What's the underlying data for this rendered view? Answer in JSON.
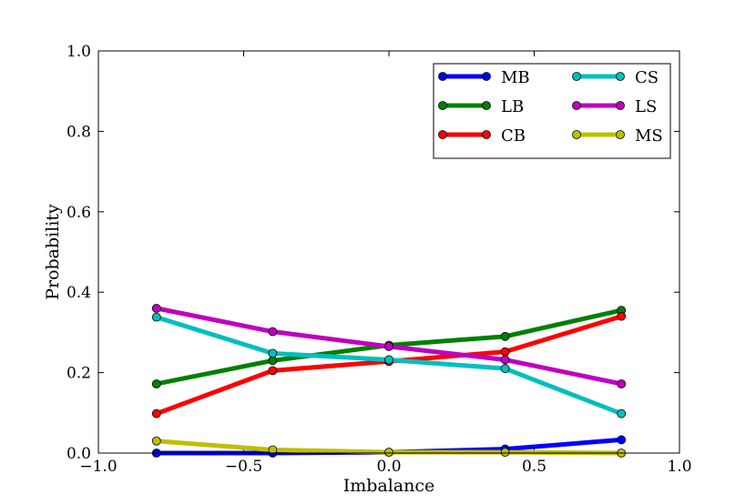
{
  "chart_data": {
    "type": "line",
    "title": "",
    "xlabel": "Imbalance",
    "ylabel": "Probability",
    "xlim": [
      -1.0,
      1.0
    ],
    "ylim": [
      0.0,
      1.0
    ],
    "xticks": [
      -1.0,
      -0.5,
      0.0,
      0.5,
      1.0
    ],
    "xtick_labels": [
      "−1.0",
      "−0.5",
      "0.0",
      "0.5",
      "1.0"
    ],
    "yticks": [
      0.0,
      0.2,
      0.4,
      0.6,
      0.8,
      1.0
    ],
    "ytick_labels": [
      "0.0",
      "0.2",
      "0.4",
      "0.6",
      "0.8",
      "1.0"
    ],
    "grid": false,
    "legend_position": "top-right",
    "x": [
      -0.8,
      -0.4,
      0.0,
      0.4,
      0.8
    ],
    "series": [
      {
        "name": "MB",
        "color": "#0000ff",
        "values": [
          0.0,
          0.0,
          0.002,
          0.01,
          0.033
        ]
      },
      {
        "name": "LB",
        "color": "#008000",
        "values": [
          0.172,
          0.23,
          0.268,
          0.29,
          0.355
        ]
      },
      {
        "name": "CB",
        "color": "#ff0000",
        "values": [
          0.098,
          0.205,
          0.228,
          0.252,
          0.34
        ]
      },
      {
        "name": "CS",
        "color": "#00bfbf",
        "values": [
          0.338,
          0.248,
          0.232,
          0.21,
          0.098
        ]
      },
      {
        "name": "LS",
        "color": "#bf00bf",
        "values": [
          0.36,
          0.302,
          0.265,
          0.232,
          0.172
        ]
      },
      {
        "name": "MS",
        "color": "#bfbf00",
        "values": [
          0.03,
          0.008,
          0.002,
          0.002,
          0.0
        ]
      }
    ]
  }
}
